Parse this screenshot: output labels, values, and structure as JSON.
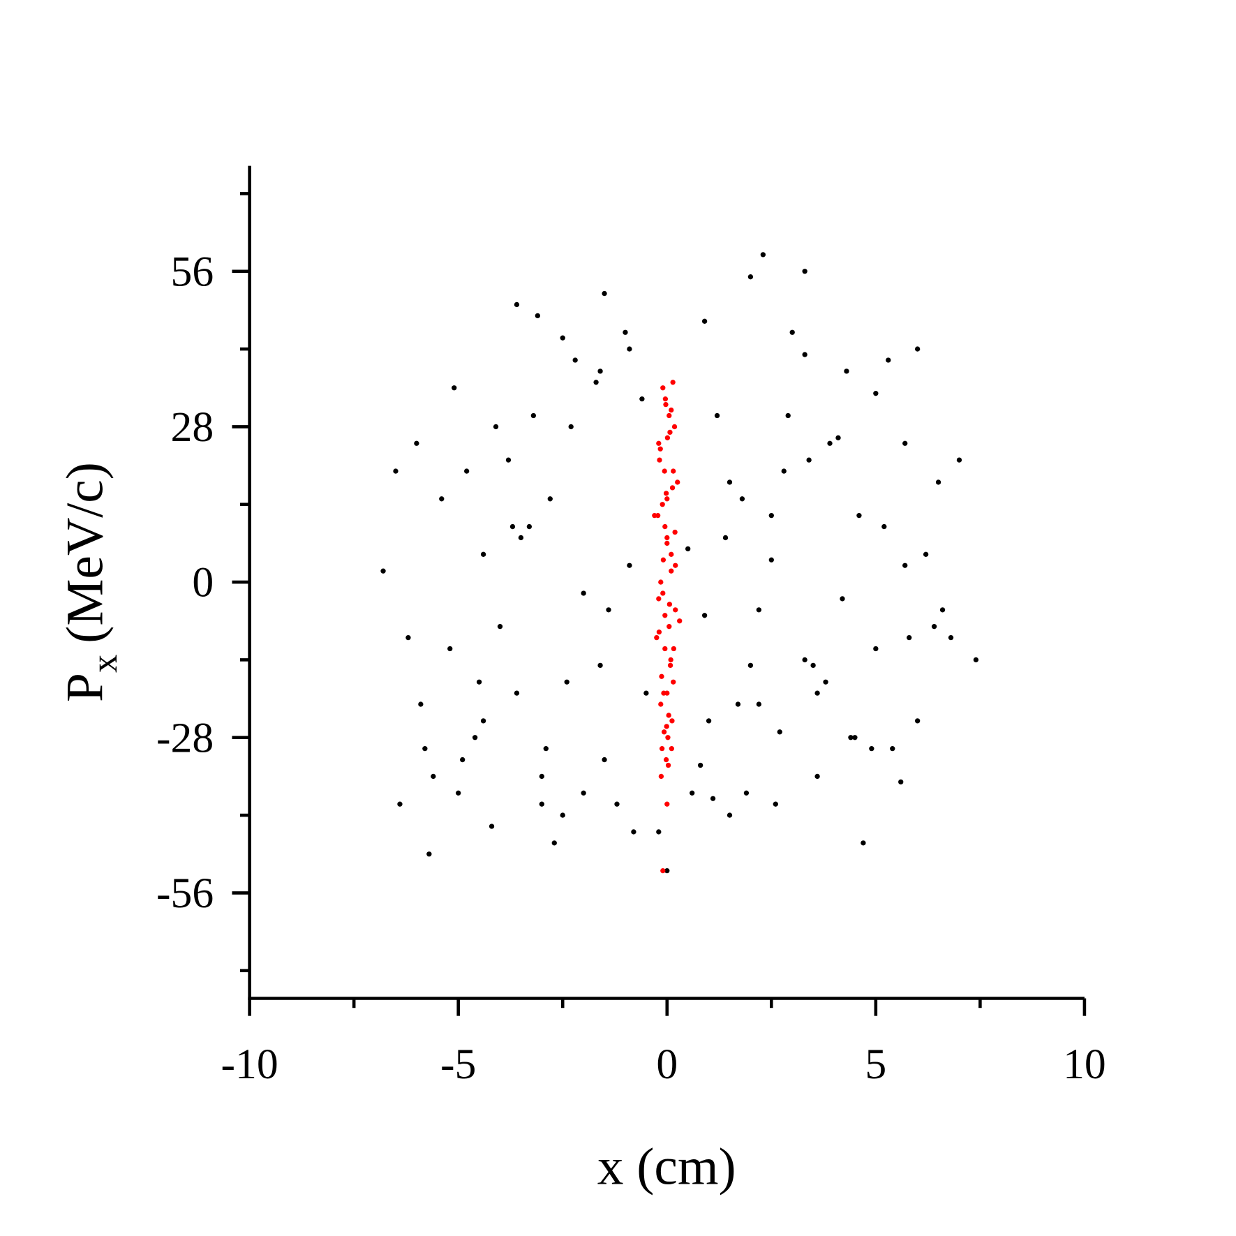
{
  "chart_data": {
    "type": "scatter",
    "x_label": "x (cm)",
    "y_label": "P",
    "y_label_sub": "x",
    "y_label_unit": "(MeV/c)",
    "xlim": [
      -10,
      10
    ],
    "xticks": [
      -10,
      -5,
      0,
      5,
      10
    ],
    "ylim": [
      -75,
      75
    ],
    "yticks": [
      -56,
      -28,
      0,
      28,
      56
    ],
    "series": [
      {
        "color": "#000000",
        "x": [
          -6.5,
          -5.8,
          -5.1,
          -4.4,
          -3.7,
          -3.0,
          -2.3,
          -1.6,
          -0.9,
          0.8,
          1.5,
          2.2,
          2.9,
          3.6,
          4.3,
          5.0,
          5.7,
          6.4,
          -6.2,
          -5.4,
          -4.6,
          -3.8,
          -3.0,
          -2.2,
          -1.4,
          -0.6,
          0.6,
          1.4,
          2.2,
          3.0,
          3.8,
          4.6,
          5.4,
          6.2,
          6.8,
          -6.8,
          -6.0,
          -5.2,
          -4.4,
          -3.6,
          -2.8,
          -2.0,
          -1.2,
          1.2,
          2.0,
          2.8,
          3.6,
          4.4,
          5.2,
          6.0,
          6.6,
          -5.6,
          -4.8,
          -4.0,
          -3.2,
          -2.4,
          -1.6,
          -0.8,
          0.9,
          1.7,
          2.5,
          3.3,
          4.1,
          4.9,
          5.7,
          6.5,
          -5.9,
          -5.0,
          -4.1,
          -3.3,
          -2.5,
          -1.7,
          -0.9,
          1.0,
          1.8,
          2.6,
          3.4,
          4.2,
          5.0,
          5.8,
          -4.5,
          -3.5,
          -2.5,
          -1.5,
          -0.5,
          0.5,
          1.5,
          2.5,
          3.5,
          4.5,
          -3.6,
          -2.0,
          0.9,
          2.0,
          3.3,
          5.6,
          -5.7,
          -2.7,
          -0.2,
          2.3,
          3.3,
          6.0,
          -4.2,
          -1.5,
          1.9,
          4.7,
          7.4,
          -6.4,
          -3.1,
          -1.0,
          1.1,
          3.9,
          -4.9,
          5.3,
          7.0,
          -2.9,
          0.0,
          2.7
        ],
        "y": [
          20,
          -30,
          35,
          -25,
          10,
          -40,
          28,
          -15,
          42,
          -33,
          18,
          -5,
          30,
          -20,
          38,
          -12,
          25,
          -8,
          -10,
          15,
          -28,
          22,
          -35,
          40,
          -5,
          33,
          -38,
          8,
          -22,
          45,
          -18,
          12,
          -30,
          5,
          -10,
          2,
          25,
          -12,
          5,
          -20,
          15,
          -2,
          -40,
          30,
          -15,
          20,
          -35,
          -28,
          10,
          -25,
          -5,
          -35,
          20,
          -8,
          30,
          -18,
          38,
          -45,
          -6,
          -22,
          12,
          -14,
          26,
          -30,
          3,
          18,
          -22,
          -38,
          28,
          10,
          -42,
          36,
          3,
          -25,
          15,
          -40,
          22,
          -3,
          34,
          -10,
          -18,
          8,
          44,
          -32,
          -20,
          6,
          -42,
          4,
          -15,
          -28,
          50,
          -38,
          47,
          55,
          41,
          -36,
          -49,
          -47,
          -45,
          59,
          56,
          42,
          -44,
          52,
          -38,
          -47,
          -14,
          -40,
          48,
          45,
          -39,
          25,
          -32,
          40,
          22,
          -30,
          -52,
          -27
        ]
      },
      {
        "color": "#ff0000",
        "x": [
          -0.1,
          0.05,
          -0.2,
          0.15,
          0.0,
          -0.05,
          0.1,
          -0.15,
          0.2,
          -0.25,
          0.08,
          -0.08,
          0.12,
          -0.12,
          0.03,
          -0.03,
          0.18,
          -0.18,
          0.25,
          -0.3,
          0.0,
          0.1,
          -0.1,
          0.05,
          -0.05,
          0.15,
          -0.15,
          0.02,
          -0.02,
          0.2,
          -0.2,
          0.07,
          -0.07,
          0.13,
          -0.13,
          0.0,
          0.3,
          -0.22,
          0.16,
          -0.16,
          0.04,
          -0.04,
          0.11,
          -0.11,
          0.09,
          -0.09,
          0.06,
          -0.06,
          0.0,
          0.14,
          -0.14,
          0.01,
          -0.01,
          0.19,
          -0.19,
          0.0,
          -0.1,
          0.1,
          -0.05,
          -0.02
        ],
        "y": [
          35,
          30,
          25,
          20,
          15,
          10,
          5,
          0,
          -5,
          -10,
          -15,
          -20,
          -25,
          -30,
          -33,
          32,
          28,
          22,
          18,
          12,
          8,
          2,
          -2,
          -8,
          -12,
          -18,
          -22,
          -28,
          -32,
          3,
          -3,
          27,
          -27,
          17,
          -17,
          7,
          -7,
          12,
          -12,
          24,
          -24,
          33,
          -30,
          14,
          -14,
          4,
          -4,
          20,
          -20,
          36,
          -35,
          26,
          -26,
          9,
          -9,
          -40,
          -52,
          31,
          -6,
          16
        ]
      }
    ]
  }
}
